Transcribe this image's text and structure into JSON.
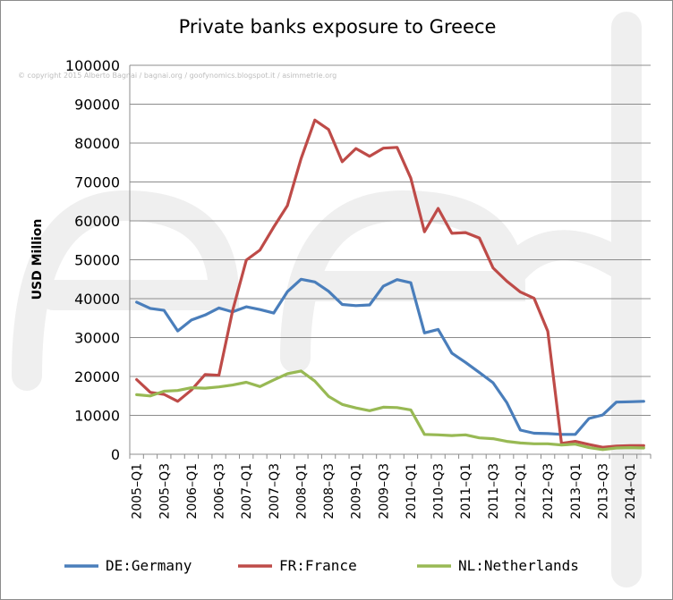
{
  "chart_data": {
    "type": "line",
    "title": "Private banks exposure to Greece",
    "ylabel": "USD Million",
    "xlabel": "",
    "ylim": [
      0,
      100000
    ],
    "yticks": [
      0,
      10000,
      20000,
      30000,
      40000,
      50000,
      60000,
      70000,
      80000,
      90000,
      100000
    ],
    "grid": "horizontal",
    "legend_position": "bottom",
    "copyright": "© copyright 2015 Alberto Bagnai / bagnai.org / goofynomics.blogspot.it / asimmetrie.org",
    "x": [
      "2005-Q1",
      "2005-Q2",
      "2005-Q3",
      "2005-Q4",
      "2006-Q1",
      "2006-Q2",
      "2006-Q3",
      "2006-Q4",
      "2007-Q1",
      "2007-Q2",
      "2007-Q3",
      "2007-Q4",
      "2008-Q1",
      "2008-Q2",
      "2008-Q3",
      "2008-Q4",
      "2009-Q1",
      "2009-Q2",
      "2009-Q3",
      "2009-Q4",
      "2010-Q1",
      "2010-Q2",
      "2010-Q3",
      "2010-Q4",
      "2011-Q1",
      "2011-Q2",
      "2011-Q3",
      "2011-Q4",
      "2012-Q1",
      "2012-Q2",
      "2012-Q3",
      "2012-Q4",
      "2013-Q1",
      "2013-Q2",
      "2013-Q3",
      "2013-Q4",
      "2014-Q1",
      "2014-Q2"
    ],
    "xtick_labels": [
      "2005–Q1",
      "2005–Q3",
      "2006–Q1",
      "2006–Q3",
      "2007–Q1",
      "2007–Q3",
      "2008–Q1",
      "2008–Q3",
      "2009–Q1",
      "2009–Q3",
      "2010–Q1",
      "2010–Q3",
      "2011–Q1",
      "2011–Q3",
      "2012–Q1",
      "2012–Q3",
      "2013–Q1",
      "2013–Q3",
      "2014–Q1"
    ],
    "series": [
      {
        "name": "DE:Germany",
        "color": "#4a7ebb",
        "values": [
          39100,
          37500,
          37000,
          31700,
          34500,
          35800,
          37600,
          36600,
          37900,
          37200,
          36300,
          41800,
          45000,
          44300,
          41900,
          38500,
          38200,
          38400,
          43200,
          44900,
          44100,
          31200,
          32100,
          26000,
          23600,
          21000,
          18400,
          13300,
          6200,
          5400,
          5300,
          5100,
          5100,
          9200,
          10100,
          13400,
          13500,
          13600
        ]
      },
      {
        "name": "FR:France",
        "color": "#be4b48",
        "values": [
          19200,
          15900,
          15400,
          13600,
          16500,
          20500,
          20300,
          36900,
          49900,
          52500,
          58400,
          63900,
          76000,
          85900,
          83500,
          75200,
          78600,
          76600,
          78700,
          78900,
          71000,
          57200,
          63200,
          56800,
          57000,
          55600,
          47900,
          44500,
          41700,
          40100,
          31600,
          2800,
          3300,
          2500,
          1800,
          2100,
          2200,
          2200
        ]
      },
      {
        "name": "NL:Netherlands",
        "color": "#98b954",
        "values": [
          15300,
          15000,
          16200,
          16400,
          17100,
          17000,
          17300,
          17800,
          18500,
          17400,
          19100,
          20700,
          21400,
          18800,
          14900,
          12800,
          11900,
          11200,
          12100,
          12000,
          11400,
          5100,
          5000,
          4800,
          5000,
          4200,
          4000,
          3300,
          2900,
          2700,
          2700,
          2400,
          2600,
          1700,
          1200,
          1600,
          1700,
          1600
        ]
      }
    ]
  }
}
